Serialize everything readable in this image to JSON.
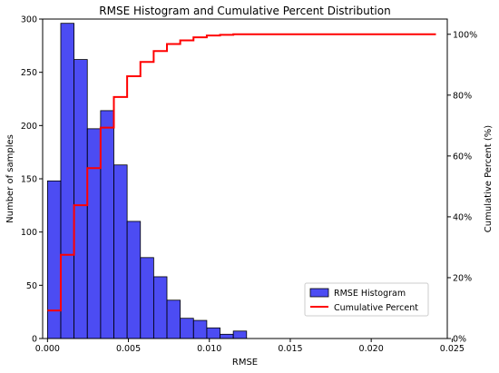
{
  "chart_data": {
    "type": "bar",
    "title": "RMSE Histogram and Cumulative Percent Distribution",
    "xlabel": "RMSE",
    "ylabel": "Number of samples",
    "y2label": "Cumulative Percent (%)",
    "xlim": [
      -0.0003,
      0.0247
    ],
    "ylim": [
      0,
      300
    ],
    "y2lim": [
      0,
      105
    ],
    "xticks": [
      "0.000",
      "0.005",
      "0.010",
      "0.015",
      "0.020",
      "0.025"
    ],
    "xtick_values": [
      0,
      0.005,
      0.01,
      0.015,
      0.02,
      0.025
    ],
    "yticks": [
      "0",
      "50",
      "100",
      "150",
      "200",
      "250",
      "300"
    ],
    "ytick_values": [
      0,
      50,
      100,
      150,
      200,
      250,
      300
    ],
    "y2ticks": [
      "0%",
      "20%",
      "40%",
      "60%",
      "80%",
      "100%"
    ],
    "y2tick_values": [
      0,
      20,
      40,
      60,
      80,
      100
    ],
    "grid": false,
    "legend_position": "lower-right",
    "series": [
      {
        "name": "RMSE Histogram",
        "type": "bar",
        "color": "#0000ee",
        "bin_width": 0.00082,
        "bin_starts": [
          0.0,
          0.00082,
          0.00164,
          0.00246,
          0.00328,
          0.0041,
          0.00492,
          0.00574,
          0.00656,
          0.00738,
          0.0082,
          0.00902,
          0.00984,
          0.01066,
          0.01148
        ],
        "values": [
          148,
          296,
          262,
          197,
          214,
          163,
          110,
          76,
          58,
          36,
          19,
          17,
          10,
          4,
          7
        ]
      },
      {
        "name": "Cumulative Percent",
        "type": "step",
        "color": "#ff0000",
        "x": [
          0.0,
          0.00082,
          0.00164,
          0.00246,
          0.00328,
          0.0041,
          0.00492,
          0.00574,
          0.00656,
          0.00738,
          0.0082,
          0.00902,
          0.00984,
          0.01066,
          0.01148,
          0.0123,
          0.024
        ],
        "values": [
          9.2,
          27.5,
          43.8,
          56.0,
          69.3,
          79.4,
          86.2,
          90.9,
          94.5,
          96.8,
          98.0,
          99.0,
          99.6,
          99.8,
          100.0,
          100.0,
          100.0
        ]
      }
    ]
  }
}
